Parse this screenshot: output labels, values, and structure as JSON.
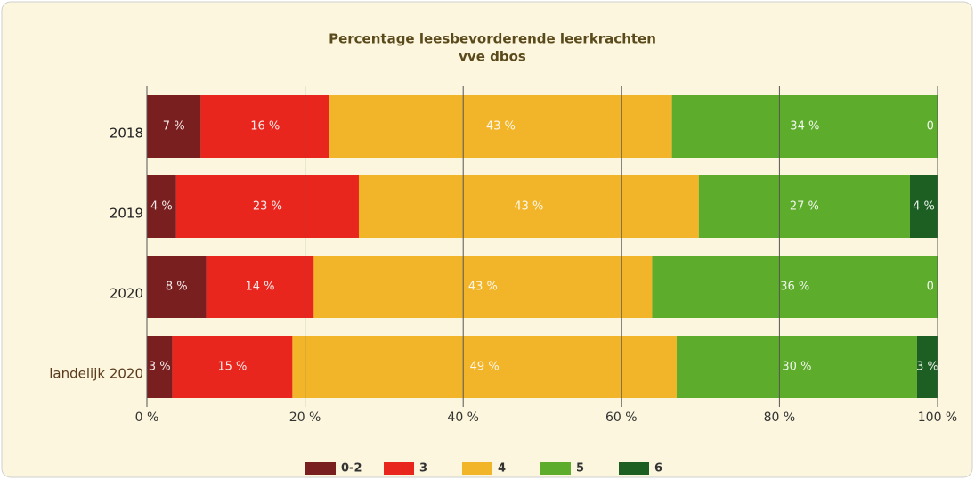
{
  "chart_data": {
    "type": "bar",
    "orientation": "horizontal",
    "stacked": true,
    "title": "Percentage leesbevorderende leerkrachten",
    "subtitle": "vve dbos",
    "categories": [
      "2018",
      "2019",
      "2020",
      "landelijk 2020"
    ],
    "series": [
      {
        "name": "0-2",
        "color": "#7a1f1f",
        "values": [
          6.8,
          3.7,
          7.5,
          3.2
        ],
        "value_labels": [
          "7 %",
          "4 %",
          "8 %",
          "3 %"
        ]
      },
      {
        "name": "3",
        "color": "#e8261e",
        "values": [
          16.3,
          23.1,
          13.6,
          15.2
        ],
        "value_labels": [
          "16 %",
          "23 %",
          "14 %",
          "15 %"
        ]
      },
      {
        "name": "4",
        "color": "#f2b52a",
        "values": [
          43.3,
          43.0,
          42.8,
          48.6
        ],
        "value_labels": [
          "43 %",
          "43 %",
          "43 %",
          "49 %"
        ]
      },
      {
        "name": "5",
        "color": "#5dac2c",
        "values": [
          33.6,
          26.7,
          36.1,
          30.4
        ],
        "value_labels": [
          "34 %",
          "27 %",
          "36 %",
          "30 %"
        ]
      },
      {
        "name": "6",
        "color": "#1d5e22",
        "values": [
          0,
          3.5,
          0,
          2.6
        ],
        "value_labels": [
          "0 %",
          "4 %",
          "0 %",
          "3 %"
        ]
      }
    ],
    "xlim": [
      0,
      100
    ],
    "xticks": [
      {
        "value": 0,
        "label": "0 %"
      },
      {
        "value": 20,
        "label": "20 %"
      },
      {
        "value": 40,
        "label": "40 %"
      },
      {
        "value": 60,
        "label": "60 %"
      },
      {
        "value": 80,
        "label": "80 %"
      },
      {
        "value": 100,
        "label": "100 %"
      }
    ],
    "grid": true,
    "legend": "bottom"
  }
}
